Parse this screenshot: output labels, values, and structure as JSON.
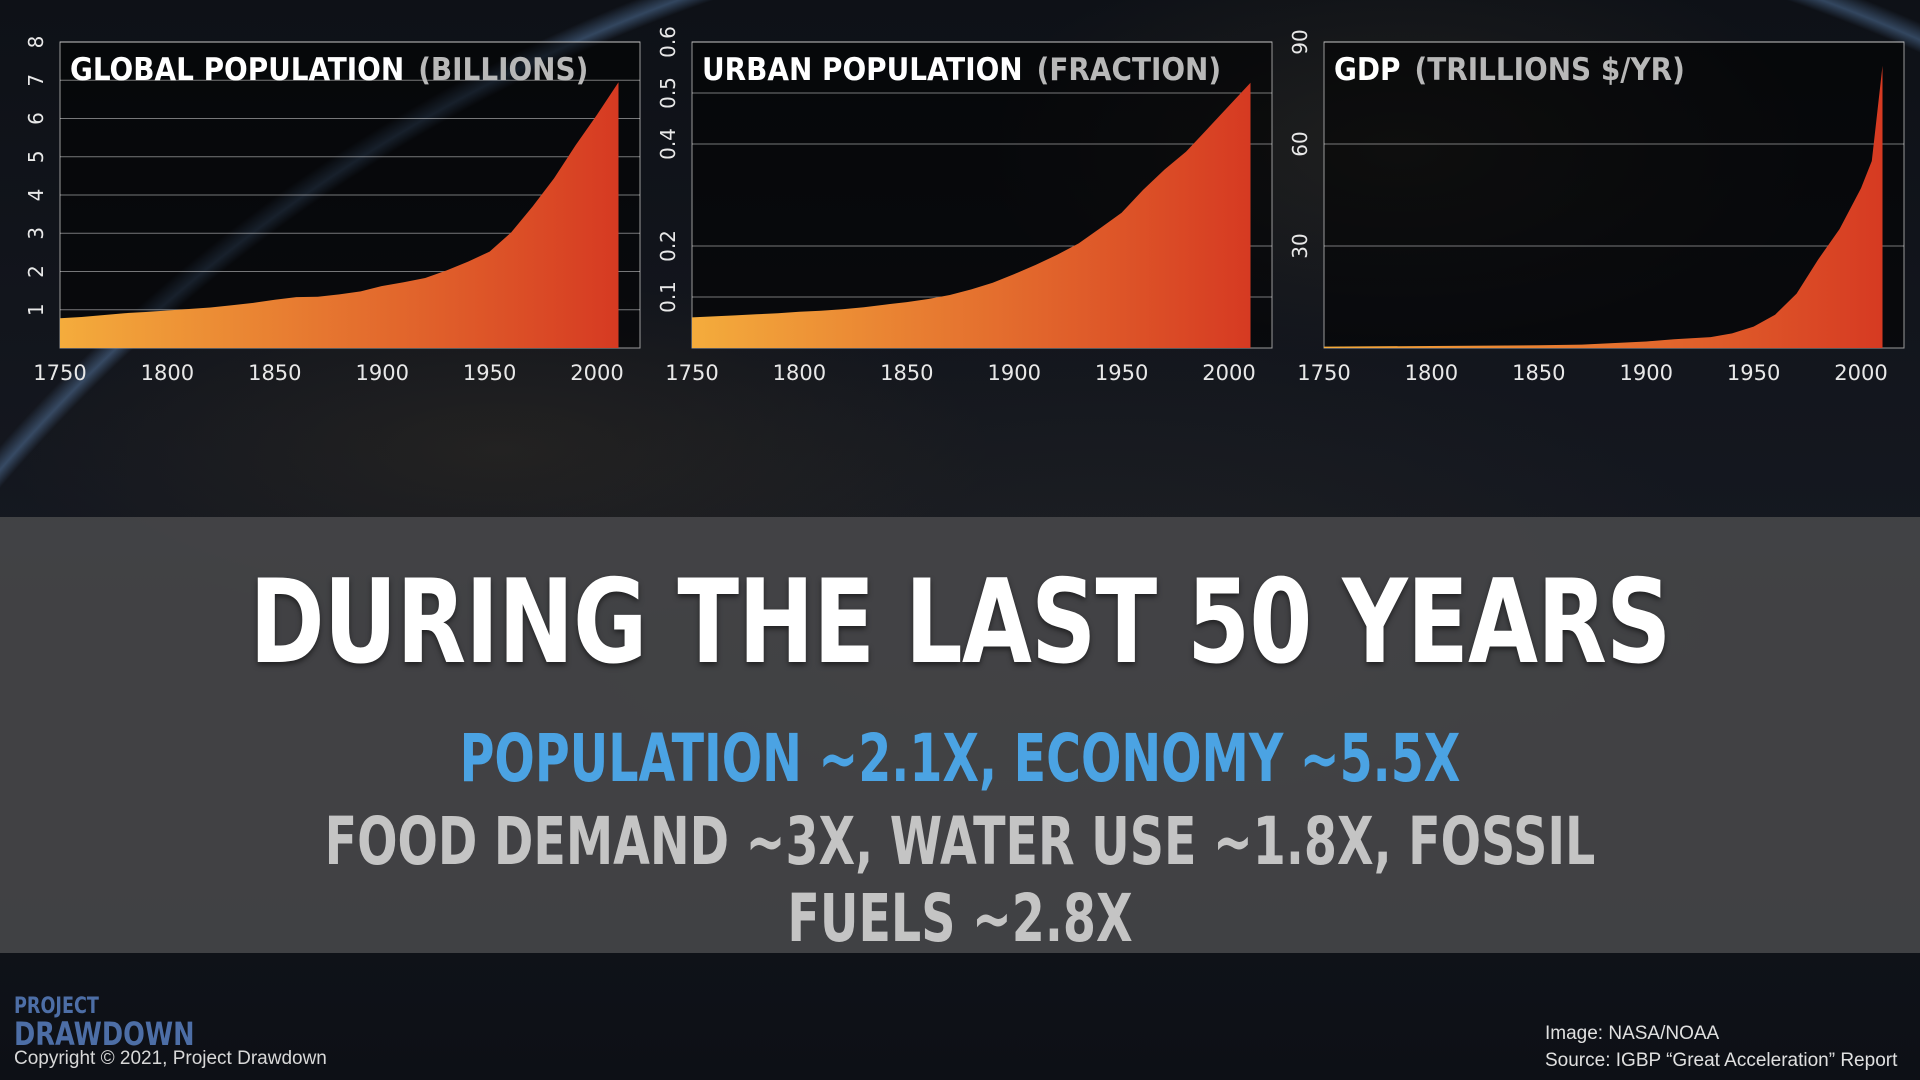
{
  "chart_data": [
    {
      "type": "area",
      "title": "GLOBAL POPULATION",
      "unit": "(BILLIONS)",
      "x": [
        1750,
        1760,
        1770,
        1780,
        1790,
        1800,
        1810,
        1820,
        1830,
        1840,
        1850,
        1860,
        1870,
        1880,
        1890,
        1900,
        1910,
        1920,
        1930,
        1940,
        1950,
        1960,
        1970,
        1980,
        1990,
        2000,
        2010
      ],
      "values": [
        0.78,
        0.81,
        0.86,
        0.91,
        0.94,
        0.98,
        1.02,
        1.06,
        1.12,
        1.18,
        1.26,
        1.33,
        1.34,
        1.4,
        1.48,
        1.62,
        1.72,
        1.83,
        2.03,
        2.26,
        2.52,
        3.02,
        3.7,
        4.44,
        5.3,
        6.1,
        6.95
      ],
      "xticks": [
        "1750",
        "1800",
        "1850",
        "1900",
        "1950",
        "2000"
      ],
      "yticks": [
        "1",
        "2",
        "3",
        "4",
        "5",
        "6",
        "7",
        "8"
      ],
      "ylim": [
        0,
        8
      ],
      "colors": {
        "start": "#f4ac3c",
        "end": "#d63a22"
      }
    },
    {
      "type": "area",
      "title": "URBAN POPULATION",
      "unit": "(FRACTION)",
      "x": [
        1750,
        1760,
        1770,
        1780,
        1790,
        1800,
        1810,
        1820,
        1830,
        1840,
        1850,
        1860,
        1870,
        1880,
        1890,
        1900,
        1910,
        1920,
        1930,
        1940,
        1950,
        1960,
        1970,
        1980,
        1990,
        2000,
        2010
      ],
      "values": [
        0.06,
        0.062,
        0.064,
        0.066,
        0.068,
        0.071,
        0.073,
        0.076,
        0.08,
        0.085,
        0.09,
        0.096,
        0.104,
        0.115,
        0.128,
        0.145,
        0.163,
        0.183,
        0.205,
        0.235,
        0.265,
        0.31,
        0.35,
        0.385,
        0.43,
        0.475,
        0.52
      ],
      "xticks": [
        "1750",
        "1800",
        "1850",
        "1900",
        "1950",
        "2000"
      ],
      "yticks": [
        "0.1",
        "0.2",
        "0.4",
        "0.5",
        "0.6"
      ],
      "ylim": [
        0,
        0.6
      ],
      "colors": {
        "start": "#f4ac3c",
        "end": "#d63a22"
      }
    },
    {
      "type": "area",
      "title": "GDP",
      "unit": "(TRILLIONS $/YR)",
      "x": [
        1750,
        1800,
        1850,
        1870,
        1900,
        1913,
        1930,
        1940,
        1950,
        1960,
        1970,
        1980,
        1990,
        2000,
        2005,
        2010
      ],
      "values": [
        0.4,
        0.6,
        0.8,
        1.0,
        1.9,
        2.6,
        3.2,
        4.3,
        6.3,
        9.8,
        16.0,
        26.0,
        35.0,
        47.0,
        55.0,
        83.0
      ],
      "xticks": [
        "1750",
        "1800",
        "1850",
        "1900",
        "1950",
        "2000"
      ],
      "yticks": [
        "30",
        "60",
        "90"
      ],
      "ylim": [
        0,
        90
      ],
      "colors": {
        "start": "#f4ac3c",
        "end": "#d63a22"
      }
    }
  ],
  "headline": "DURING THE LAST 50 YEARS",
  "line1": "POPULATION ~2.1X, ECONOMY ~5.5X",
  "line2": "FOOD DEMAND ~3X, WATER USE ~1.8X, FOSSIL FUELS ~2.8X",
  "logo": {
    "top": "PROJECT",
    "bottom": "DRAWDOWN"
  },
  "copyright": "Copyright © 2021, Project Drawdown",
  "credits": {
    "image": "Image: NASA/NOAA",
    "source": "Source: IGBP “Great Acceleration” Report"
  }
}
